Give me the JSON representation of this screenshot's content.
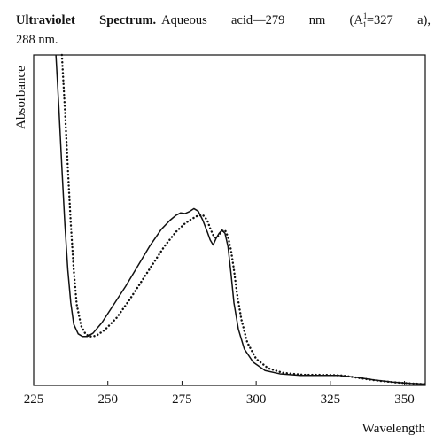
{
  "caption": {
    "title": "Ultraviolet Spectrum.",
    "line1_rest": "Aqueous acid—279 nm (A",
    "a_sup": "1",
    "a_sub": "1",
    "a_rest": "=327 a),",
    "line2": "288 nm."
  },
  "chart_data": {
    "type": "line",
    "title": "",
    "xlabel": "Wavelength",
    "ylabel": "Absorbance",
    "xlim": [
      225,
      357
    ],
    "ylim": [
      0,
      1
    ],
    "xticks": [
      225,
      250,
      275,
      300,
      325,
      350
    ],
    "yticks": [],
    "grid": false,
    "legend": "none",
    "series": [
      {
        "style": "solid",
        "color": "#111111",
        "points": [
          [
            232.5,
            1.0
          ],
          [
            233.5,
            0.84
          ],
          [
            234.5,
            0.66
          ],
          [
            235.5,
            0.49
          ],
          [
            236.5,
            0.35
          ],
          [
            237.5,
            0.25
          ],
          [
            238.5,
            0.185
          ],
          [
            240,
            0.156
          ],
          [
            241.5,
            0.148
          ],
          [
            243,
            0.148
          ],
          [
            245,
            0.158
          ],
          [
            248,
            0.19
          ],
          [
            252,
            0.245
          ],
          [
            256,
            0.3
          ],
          [
            260,
            0.36
          ],
          [
            264,
            0.42
          ],
          [
            268,
            0.472
          ],
          [
            271,
            0.5
          ],
          [
            273,
            0.515
          ],
          [
            274.5,
            0.522
          ],
          [
            276,
            0.52
          ],
          [
            277.5,
            0.526
          ],
          [
            279,
            0.535
          ],
          [
            280.5,
            0.527
          ],
          [
            282,
            0.5
          ],
          [
            283.5,
            0.465
          ],
          [
            284.5,
            0.44
          ],
          [
            285.5,
            0.425
          ],
          [
            286.5,
            0.445
          ],
          [
            287.5,
            0.46
          ],
          [
            288.5,
            0.47
          ],
          [
            289.5,
            0.46
          ],
          [
            290.5,
            0.42
          ],
          [
            291.5,
            0.34
          ],
          [
            292.5,
            0.25
          ],
          [
            294,
            0.17
          ],
          [
            296,
            0.11
          ],
          [
            299,
            0.07
          ],
          [
            303,
            0.045
          ],
          [
            308,
            0.035
          ],
          [
            315,
            0.03
          ],
          [
            322,
            0.03
          ],
          [
            328,
            0.03
          ],
          [
            334,
            0.024
          ],
          [
            340,
            0.016
          ],
          [
            346,
            0.01
          ],
          [
            352,
            0.006
          ],
          [
            357,
            0.004
          ]
        ]
      },
      {
        "style": "dotted",
        "color": "#111111",
        "points": [
          [
            234.5,
            1.0
          ],
          [
            235.5,
            0.84
          ],
          [
            236.5,
            0.66
          ],
          [
            237.5,
            0.49
          ],
          [
            238.5,
            0.35
          ],
          [
            239.5,
            0.245
          ],
          [
            241,
            0.18
          ],
          [
            242.5,
            0.155
          ],
          [
            244,
            0.148
          ],
          [
            246,
            0.15
          ],
          [
            249,
            0.168
          ],
          [
            253,
            0.205
          ],
          [
            257,
            0.255
          ],
          [
            261,
            0.31
          ],
          [
            265,
            0.365
          ],
          [
            269,
            0.42
          ],
          [
            273,
            0.465
          ],
          [
            276,
            0.49
          ],
          [
            278,
            0.502
          ],
          [
            280,
            0.512
          ],
          [
            282,
            0.516
          ],
          [
            283.5,
            0.5
          ],
          [
            284.5,
            0.475
          ],
          [
            285.5,
            0.455
          ],
          [
            286.5,
            0.445
          ],
          [
            287.5,
            0.455
          ],
          [
            288.5,
            0.467
          ],
          [
            289.5,
            0.47
          ],
          [
            290.5,
            0.45
          ],
          [
            291.5,
            0.41
          ],
          [
            292.5,
            0.35
          ],
          [
            293.5,
            0.28
          ],
          [
            295,
            0.2
          ],
          [
            297,
            0.13
          ],
          [
            300,
            0.08
          ],
          [
            304,
            0.052
          ],
          [
            309,
            0.038
          ],
          [
            316,
            0.032
          ],
          [
            323,
            0.032
          ],
          [
            329,
            0.03
          ],
          [
            335,
            0.022
          ],
          [
            341,
            0.014
          ],
          [
            347,
            0.009
          ],
          [
            352,
            0.006
          ],
          [
            357,
            0.004
          ]
        ]
      }
    ]
  }
}
